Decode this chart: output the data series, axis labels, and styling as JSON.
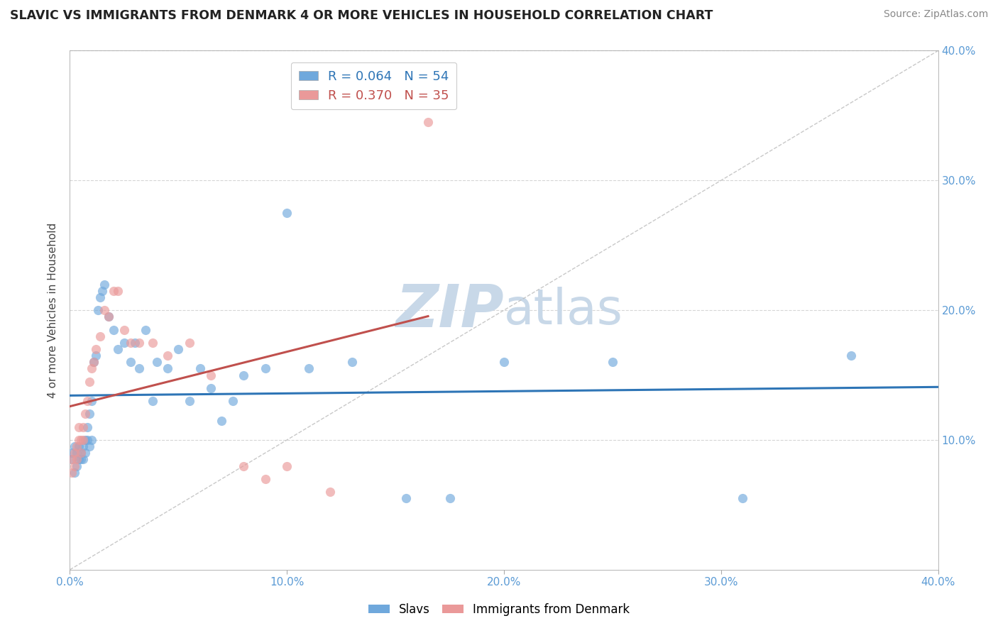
{
  "title": "SLAVIC VS IMMIGRANTS FROM DENMARK 4 OR MORE VEHICLES IN HOUSEHOLD CORRELATION CHART",
  "source": "Source: ZipAtlas.com",
  "ylabel": "4 or more Vehicles in Household",
  "xmin": 0.0,
  "xmax": 0.4,
  "ymin": 0.0,
  "ymax": 0.4,
  "xticks": [
    0.0,
    0.1,
    0.2,
    0.3,
    0.4
  ],
  "yticks": [
    0.1,
    0.2,
    0.3,
    0.4
  ],
  "xtick_labels": [
    "0.0%",
    "10.0%",
    "20.0%",
    "30.0%",
    "40.0%"
  ],
  "right_ytick_labels": [
    "10.0%",
    "20.0%",
    "30.0%",
    "40.0%"
  ],
  "slavs_color": "#6fa8dc",
  "denmark_color": "#ea9999",
  "slavs_R": 0.064,
  "slavs_N": 54,
  "denmark_R": 0.37,
  "denmark_N": 35,
  "slavs_x": [
    0.001,
    0.001,
    0.002,
    0.002,
    0.003,
    0.003,
    0.004,
    0.004,
    0.005,
    0.005,
    0.006,
    0.006,
    0.007,
    0.007,
    0.008,
    0.008,
    0.009,
    0.009,
    0.01,
    0.01,
    0.011,
    0.012,
    0.013,
    0.014,
    0.015,
    0.016,
    0.018,
    0.02,
    0.022,
    0.025,
    0.028,
    0.03,
    0.032,
    0.035,
    0.038,
    0.04,
    0.045,
    0.05,
    0.055,
    0.06,
    0.065,
    0.07,
    0.075,
    0.08,
    0.09,
    0.1,
    0.11,
    0.13,
    0.155,
    0.175,
    0.2,
    0.25,
    0.31,
    0.36
  ],
  "slavs_y": [
    0.085,
    0.09,
    0.075,
    0.095,
    0.08,
    0.09,
    0.085,
    0.095,
    0.09,
    0.085,
    0.085,
    0.095,
    0.09,
    0.1,
    0.1,
    0.11,
    0.095,
    0.12,
    0.13,
    0.1,
    0.16,
    0.165,
    0.2,
    0.21,
    0.215,
    0.22,
    0.195,
    0.185,
    0.17,
    0.175,
    0.16,
    0.175,
    0.155,
    0.185,
    0.13,
    0.16,
    0.155,
    0.17,
    0.13,
    0.155,
    0.14,
    0.115,
    0.13,
    0.15,
    0.155,
    0.275,
    0.155,
    0.16,
    0.055,
    0.055,
    0.16,
    0.16,
    0.055,
    0.165
  ],
  "denmark_x": [
    0.001,
    0.001,
    0.002,
    0.002,
    0.003,
    0.003,
    0.004,
    0.004,
    0.005,
    0.005,
    0.006,
    0.006,
    0.007,
    0.008,
    0.009,
    0.01,
    0.011,
    0.012,
    0.014,
    0.016,
    0.018,
    0.02,
    0.022,
    0.025,
    0.028,
    0.032,
    0.038,
    0.045,
    0.055,
    0.065,
    0.08,
    0.09,
    0.1,
    0.12,
    0.165
  ],
  "denmark_y": [
    0.075,
    0.085,
    0.08,
    0.09,
    0.085,
    0.095,
    0.1,
    0.11,
    0.09,
    0.1,
    0.1,
    0.11,
    0.12,
    0.13,
    0.145,
    0.155,
    0.16,
    0.17,
    0.18,
    0.2,
    0.195,
    0.215,
    0.215,
    0.185,
    0.175,
    0.175,
    0.175,
    0.165,
    0.175,
    0.15,
    0.08,
    0.07,
    0.08,
    0.06,
    0.345
  ],
  "slavs_line_color": "#2e75b6",
  "denmark_line_color": "#c0504d",
  "watermark_zip": "ZIP",
  "watermark_atlas": "atlas",
  "watermark_color": "#c8d8e8",
  "background_color": "#ffffff",
  "grid_color": "#cccccc",
  "title_color": "#222222",
  "tick_color": "#5b9bd5",
  "axis_color": "#aaaaaa",
  "legend_box_color": "#dddddd"
}
